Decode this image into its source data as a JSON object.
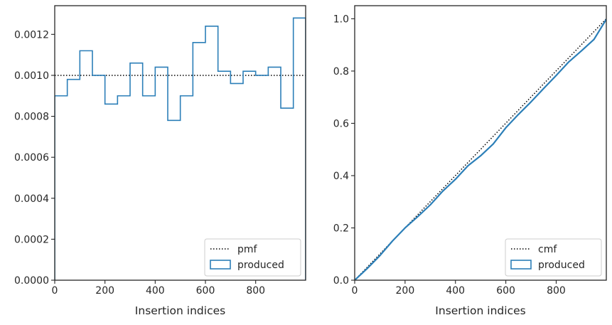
{
  "chart_data": [
    {
      "type": "step",
      "xlabel": "Insertion indices",
      "ylabel": "",
      "xlim": [
        0,
        999
      ],
      "ylim": [
        0,
        0.00134
      ],
      "xticks": [
        0,
        200,
        400,
        600,
        800
      ],
      "xtick_labels": [
        "0",
        "200",
        "400",
        "600",
        "800"
      ],
      "yticks": [
        0,
        0.0002,
        0.0004,
        0.0006,
        0.0008,
        0.001,
        0.0012
      ],
      "ytick_labels": [
        "0.0000",
        "0.0002",
        "0.0004",
        "0.0006",
        "0.0008",
        "0.0010",
        "0.0012"
      ],
      "legend_position": "lower-right",
      "reference": {
        "name": "pmf",
        "y": 0.001,
        "style": "dotted",
        "color": "#000000"
      },
      "series": [
        {
          "name": "produced",
          "color": "#2c7fb8",
          "bin_edges": [
            0,
            50,
            100,
            150,
            200,
            250,
            300,
            350,
            400,
            450,
            500,
            550,
            600,
            650,
            700,
            750,
            800,
            850,
            900,
            950,
            999
          ],
          "values": [
            0.0009,
            0.00098,
            0.00112,
            0.001,
            0.00086,
            0.0009,
            0.00106,
            0.0009,
            0.00104,
            0.00078,
            0.0009,
            0.00116,
            0.00124,
            0.00102,
            0.00096,
            0.00102,
            0.001,
            0.00104,
            0.00084,
            0.00128
          ]
        }
      ]
    },
    {
      "type": "line",
      "xlabel": "Insertion indices",
      "ylabel": "",
      "xlim": [
        0,
        999
      ],
      "ylim": [
        0,
        1.05
      ],
      "xticks": [
        0,
        200,
        400,
        600,
        800
      ],
      "xtick_labels": [
        "0",
        "200",
        "400",
        "600",
        "800"
      ],
      "yticks": [
        0,
        0.2,
        0.4,
        0.6,
        0.8,
        1.0
      ],
      "ytick_labels": [
        "0.0",
        "0.2",
        "0.4",
        "0.6",
        "0.8",
        "1.0"
      ],
      "legend_position": "lower-right",
      "reference": {
        "name": "cmf",
        "x": [
          0,
          999
        ],
        "y": [
          0,
          1.0
        ],
        "style": "dotted",
        "color": "#000000"
      },
      "series": [
        {
          "name": "produced",
          "color": "#2c7fb8",
          "x": [
            0,
            50,
            100,
            150,
            200,
            250,
            300,
            350,
            400,
            450,
            500,
            550,
            600,
            650,
            700,
            750,
            800,
            850,
            900,
            950,
            999
          ],
          "y": [
            0,
            0.045,
            0.094,
            0.15,
            0.2,
            0.243,
            0.288,
            0.341,
            0.386,
            0.438,
            0.476,
            0.521,
            0.583,
            0.634,
            0.682,
            0.733,
            0.783,
            0.835,
            0.877,
            0.921,
            0.998
          ]
        }
      ]
    }
  ]
}
